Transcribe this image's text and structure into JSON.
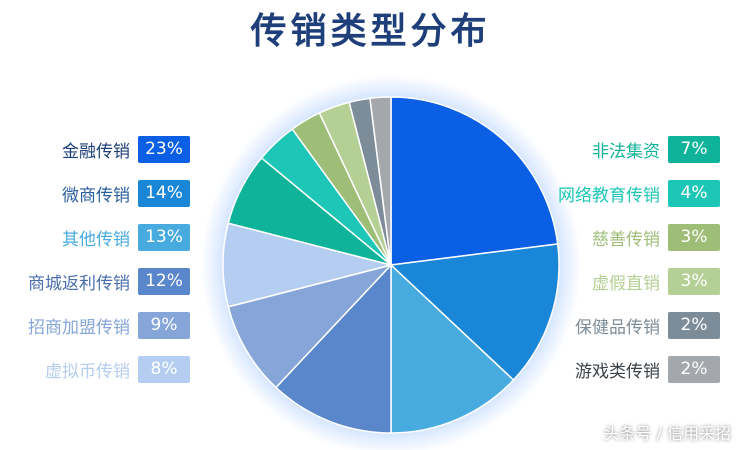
{
  "chart_data": {
    "type": "pie",
    "title": "传销类型分布",
    "slices": [
      {
        "name": "金融传销",
        "label": "23%",
        "value": 23,
        "color": "#0a5fe4"
      },
      {
        "name": "微商传销",
        "label": "14%",
        "value": 14,
        "color": "#1a86d8"
      },
      {
        "name": "其他传销",
        "label": "13%",
        "value": 13,
        "color": "#48abe0"
      },
      {
        "name": "商城返利传销",
        "label": "12%",
        "value": 12,
        "color": "#5a86cc"
      },
      {
        "name": "招商加盟传销",
        "label": "9%",
        "value": 9,
        "color": "#86a6da"
      },
      {
        "name": "虚拟币传销",
        "label": "8%",
        "value": 8,
        "color": "#b4cdf0"
      },
      {
        "name": "非法集资",
        "label": "7%",
        "value": 7,
        "color": "#0eb39a"
      },
      {
        "name": "网络教育传销",
        "label": "4%",
        "value": 4,
        "color": "#1dc6b6"
      },
      {
        "name": "慈善传销",
        "label": "3%",
        "value": 3,
        "color": "#9ebe78"
      },
      {
        "name": "虚假直销",
        "label": "3%",
        "value": 3,
        "color": "#b4d094"
      },
      {
        "name": "保健品传销",
        "label": "2%",
        "value": 2,
        "color": "#7c8c98"
      },
      {
        "name": "游戏类传销",
        "label": "2%",
        "value": 2,
        "color": "#a4a7ab"
      }
    ],
    "legend_left_text_colors": [
      "#1f3f7a",
      "#2a5fa0",
      "#48abe0",
      "#4a6fae",
      "#86a6da",
      "#b4cdf0"
    ],
    "legend_right_text_colors": [
      "#0eb39a",
      "#1dc6b6",
      "#9ebe78",
      "#b4d094",
      "#7c8c98",
      "#3a4248"
    ]
  },
  "watermark": "头条号 / 信用采招"
}
